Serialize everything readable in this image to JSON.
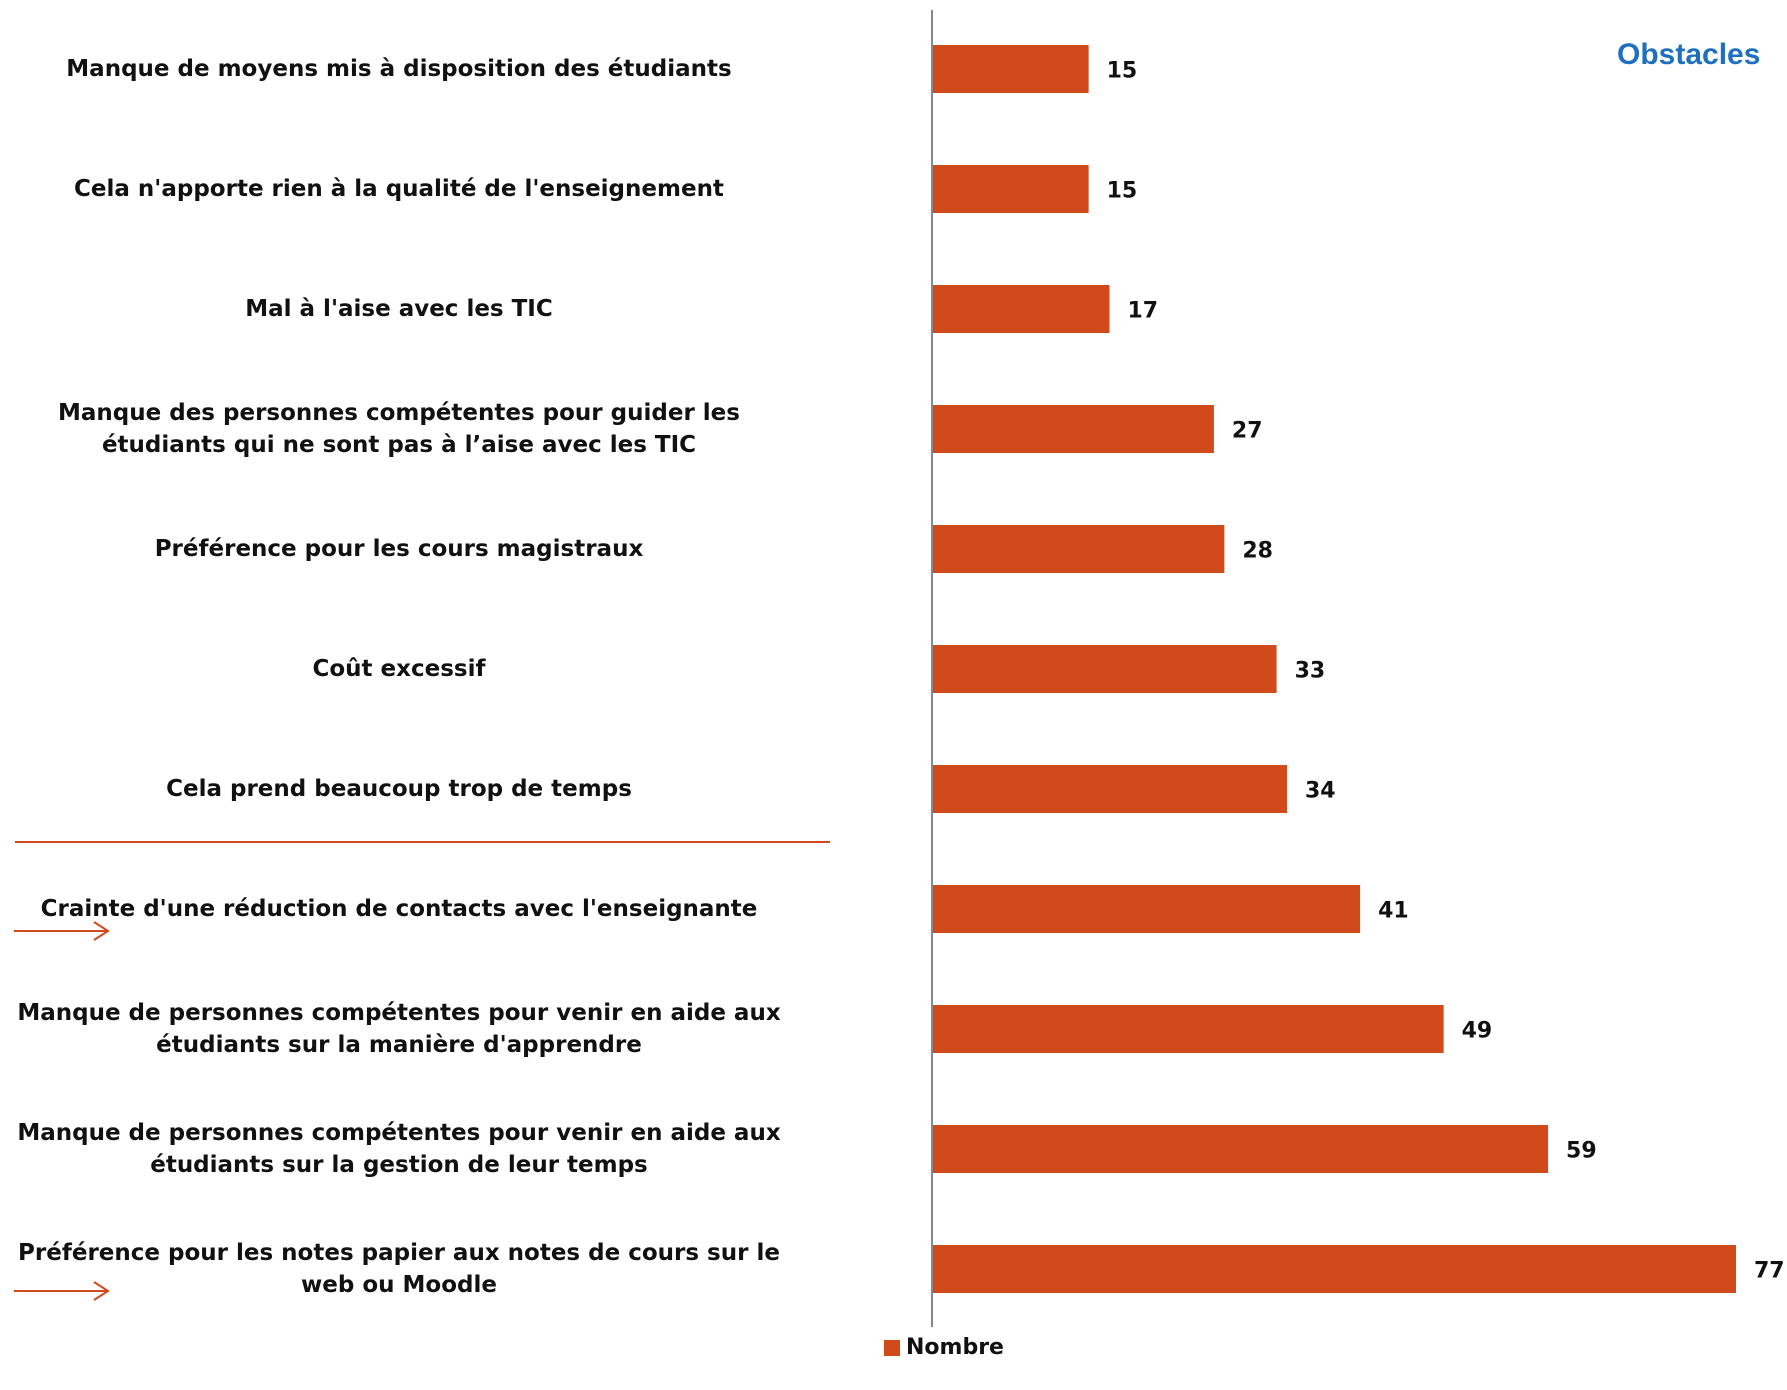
{
  "chart_data": {
    "type": "bar",
    "orientation": "horizontal",
    "title": "Obstacles",
    "categories": [
      "Manque de moyens mis à disposition des étudiants",
      "Cela n'apporte rien à la qualité de l'enseignement",
      "Mal à l'aise avec les TIC",
      "Manque des personnes compétentes pour guider les étudiants qui ne sont pas à l’aise avec les TIC",
      "Préférence pour les cours magistraux",
      "Coût excessif",
      "Cela prend beaucoup trop de temps",
      "Crainte d'une réduction de contacts avec l'enseignante",
      "Manque de personnes compétentes pour venir en aide aux étudiants sur la manière d'apprendre",
      "Manque de personnes compétentes pour venir en aide aux étudiants sur la gestion de leur temps",
      "Préférence pour les notes papier aux notes de cours sur le web ou Moodle"
    ],
    "series": [
      {
        "name": "Nombre",
        "values": [
          15,
          15,
          17,
          27,
          28,
          33,
          34,
          41,
          49,
          59,
          77
        ]
      }
    ],
    "xlim": [
      0,
      77
    ],
    "grid": false,
    "legend_position": "bottom",
    "highlighted_categories": [
      "Crainte d'une réduction de contacts avec l'enseignante",
      "Préférence pour les notes papier aux notes de cours sur le web ou Moodle"
    ]
  },
  "colors": {
    "bar": "#d04a1c",
    "axis": "#888888",
    "title": "#1f6fbf",
    "annotation": "#d04a1c"
  },
  "legend": {
    "label": "Nombre"
  }
}
